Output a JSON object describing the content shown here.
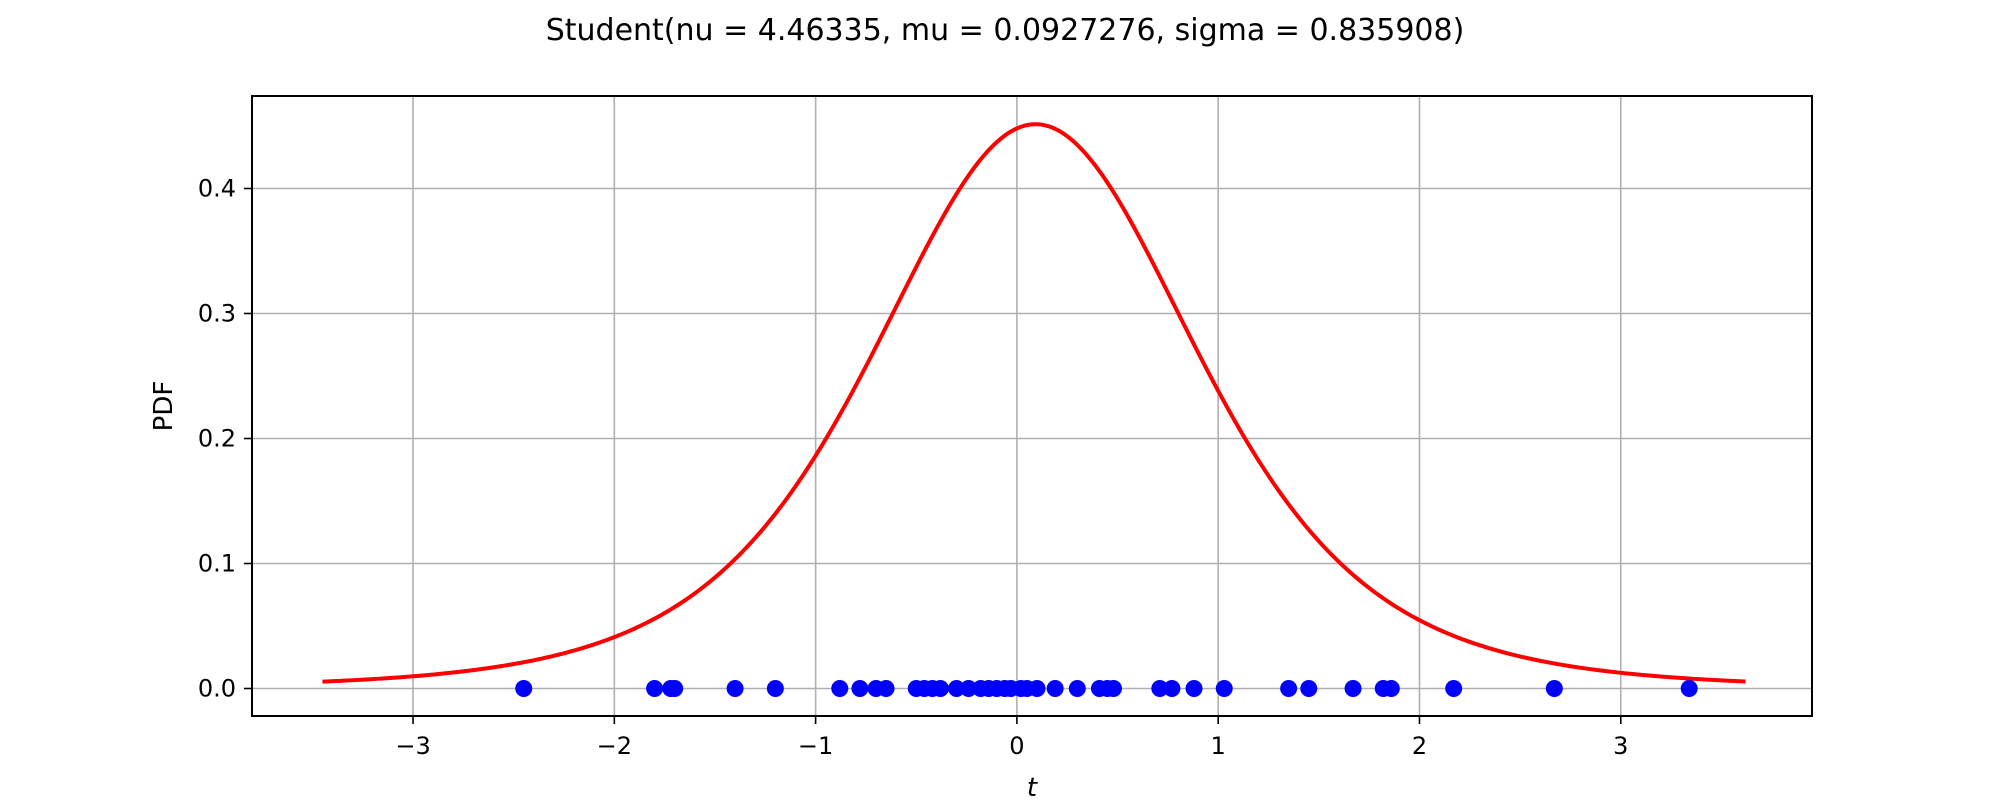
{
  "chart_data": {
    "type": "line",
    "title": "Student(nu = 4.46335, mu = 0.0927276, sigma = 0.835908)",
    "xlabel": "t",
    "ylabel": "PDF",
    "xlim": [
      -3.8,
      3.95
    ],
    "ylim": [
      -0.022,
      0.474
    ],
    "x_ticks": [
      -3,
      -2,
      -1,
      0,
      1,
      2,
      3
    ],
    "x_tick_labels": [
      "−3",
      "−2",
      "−1",
      "0",
      "1",
      "2",
      "3"
    ],
    "y_ticks": [
      0.0,
      0.1,
      0.2,
      0.3,
      0.4
    ],
    "y_tick_labels": [
      "0.0",
      "0.1",
      "0.2",
      "0.3",
      "0.4"
    ],
    "grid": true,
    "distribution": {
      "nu": 4.46335,
      "mu": 0.0927276,
      "sigma": 0.835908
    },
    "series": [
      {
        "style": "line",
        "color": "#ff0000",
        "x_range": [
          -3.45,
          3.62
        ]
      },
      {
        "style": "scatter",
        "color": "#0000ff",
        "x": [
          -2.45,
          -1.8,
          -1.72,
          -1.7,
          -1.4,
          -1.2,
          -0.88,
          -0.78,
          -0.7,
          -0.65,
          -0.5,
          -0.46,
          -0.42,
          -0.38,
          -0.3,
          -0.24,
          -0.18,
          -0.14,
          -0.1,
          -0.06,
          -0.03,
          0.02,
          0.05,
          0.1,
          0.19,
          0.3,
          0.41,
          0.45,
          0.48,
          0.71,
          0.77,
          0.88,
          1.03,
          1.35,
          1.45,
          1.67,
          1.82,
          1.86,
          2.17,
          2.67,
          3.34
        ],
        "y_value": 0.0
      }
    ]
  }
}
